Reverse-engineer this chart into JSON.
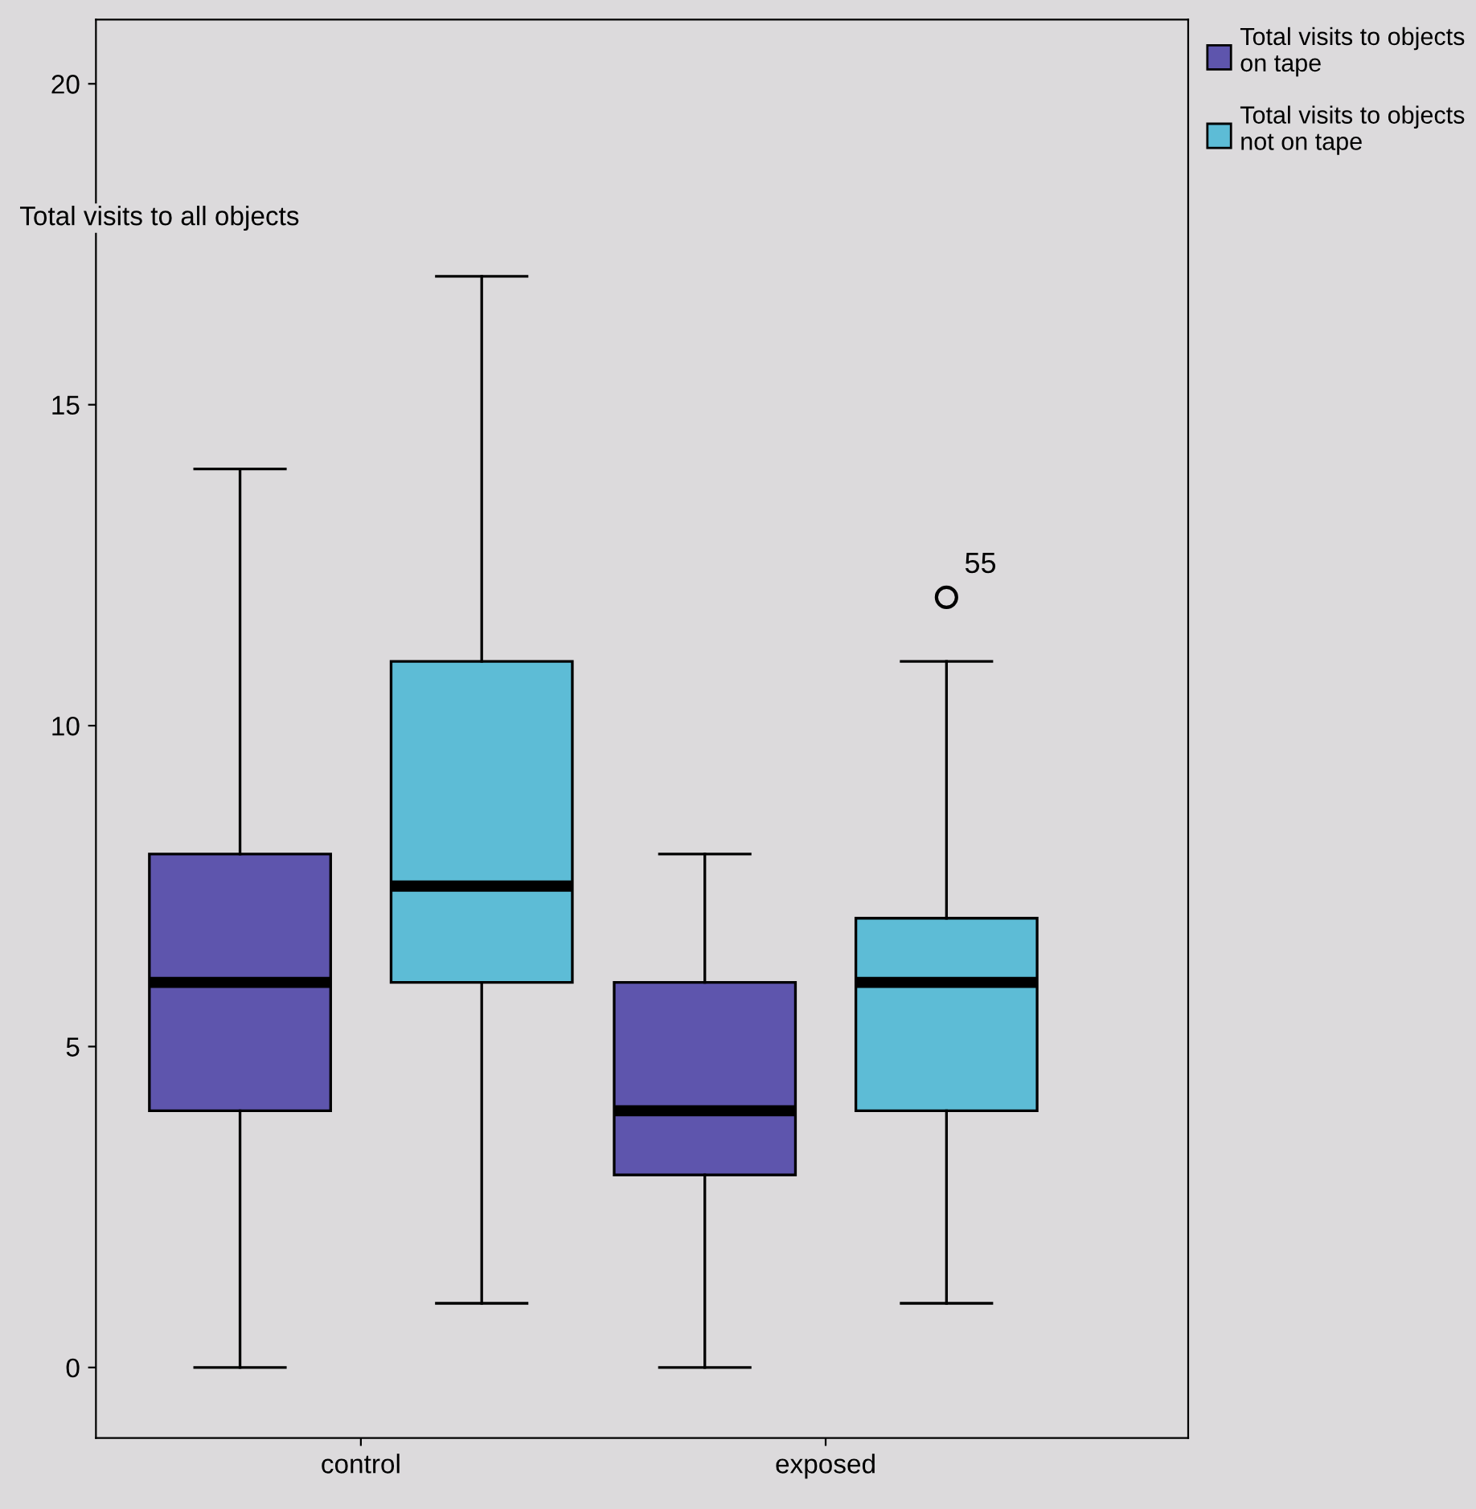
{
  "chart_data": {
    "type": "box",
    "ylabel": "Total visits to all objects",
    "categories": [
      "control",
      "exposed"
    ],
    "series": [
      {
        "name": "Total visits to objects on tape",
        "color": "#5e55ad",
        "boxes": [
          {
            "low": 0,
            "q1": 4,
            "median": 6,
            "q3": 8,
            "high": 14
          },
          {
            "low": 0,
            "q1": 3,
            "median": 4,
            "q3": 6,
            "high": 8
          }
        ]
      },
      {
        "name": "Total visits to objects not on tape",
        "color": "#5dbcd6",
        "boxes": [
          {
            "low": 1,
            "q1": 6,
            "median": 7.5,
            "q3": 11,
            "high": 17
          },
          {
            "low": 1,
            "q1": 4,
            "median": 6,
            "q3": 7,
            "high": 11,
            "outliers": [
              12
            ]
          }
        ]
      }
    ],
    "annotations": [
      "55"
    ],
    "ylim": [
      -1.1,
      21
    ],
    "yticks": [
      0,
      5,
      10,
      15,
      20
    ],
    "grid": false,
    "legend": "top right"
  }
}
